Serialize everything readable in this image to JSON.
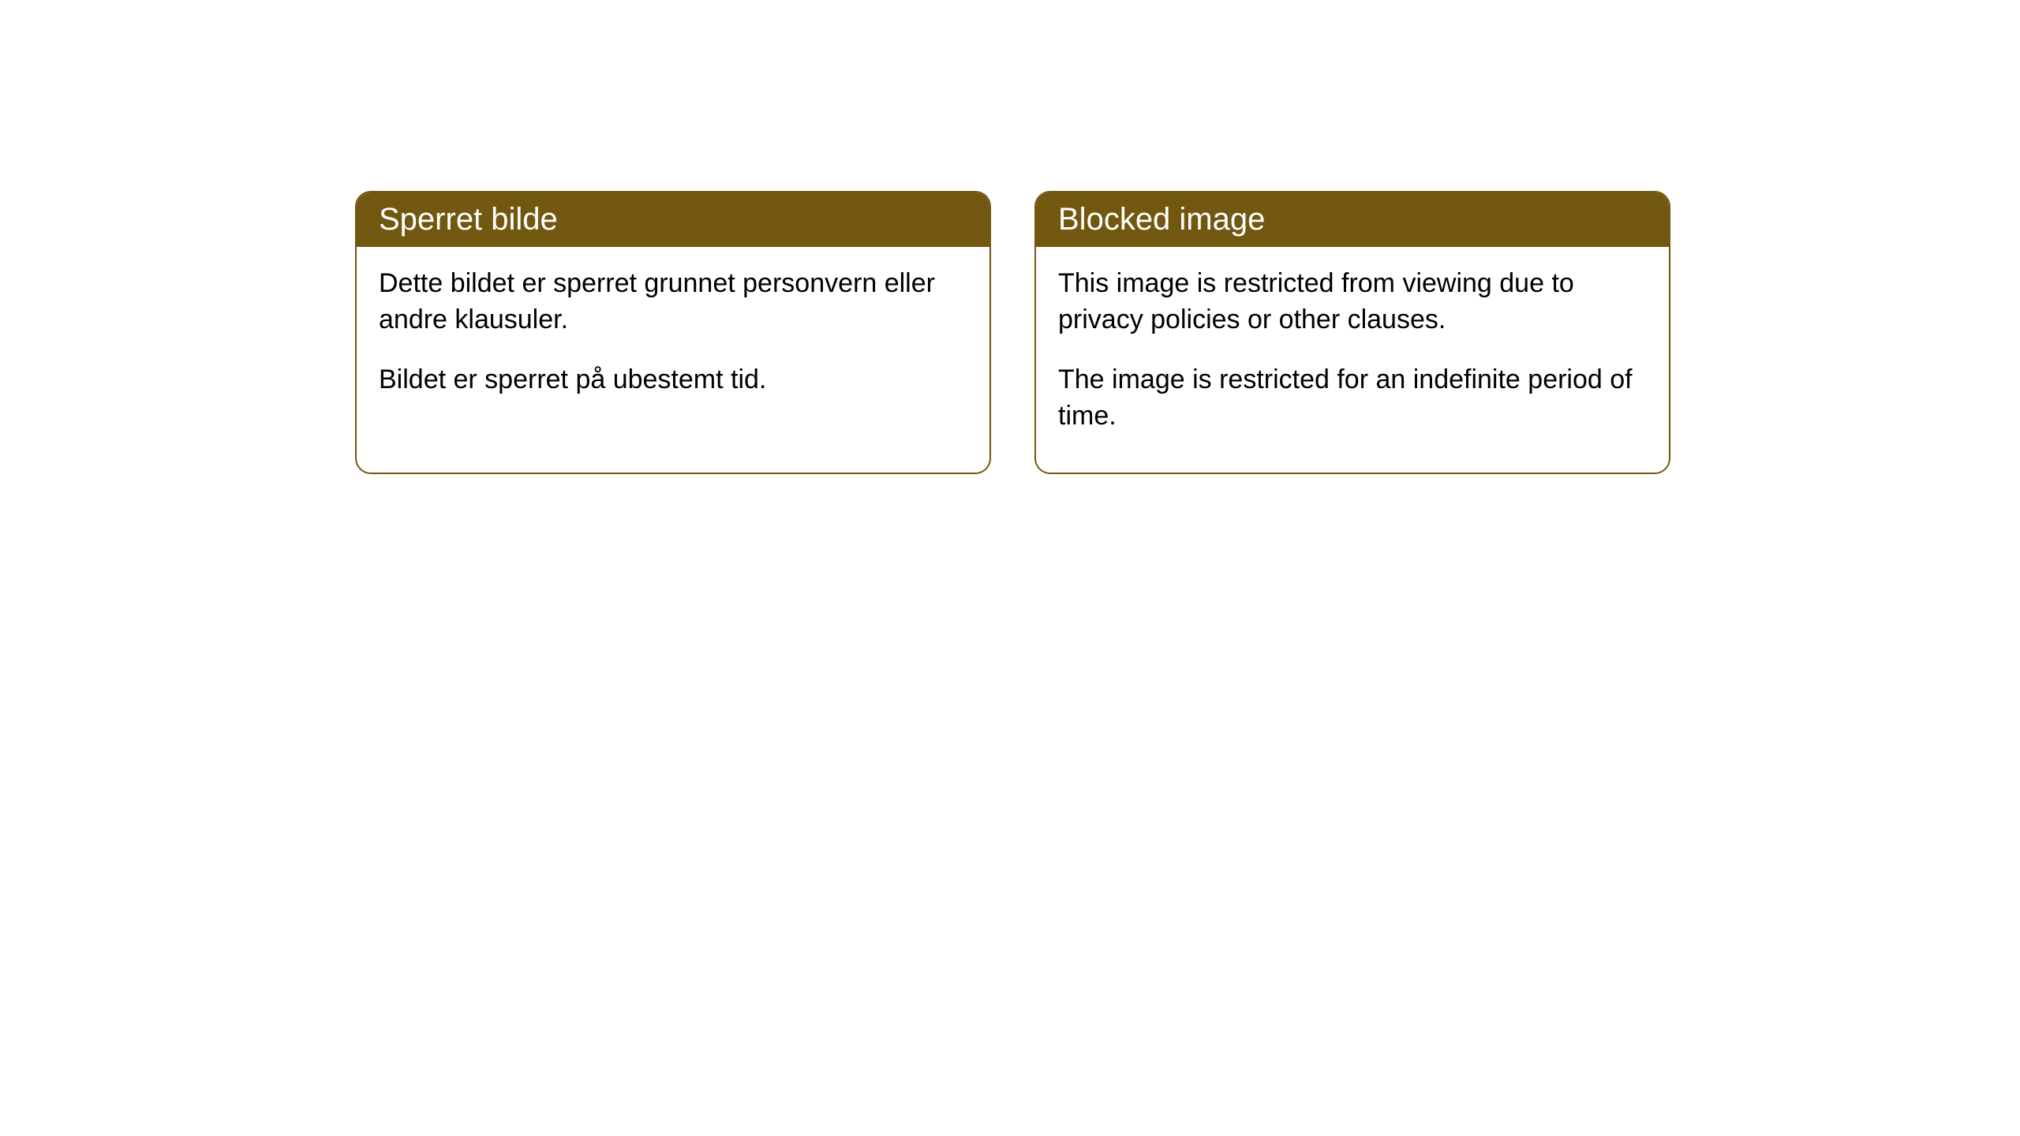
{
  "cards": [
    {
      "title": "Sperret bilde",
      "paragraph1": "Dette bildet er sperret grunnet personvern eller andre klausuler.",
      "paragraph2": "Bildet er sperret på ubestemt tid."
    },
    {
      "title": "Blocked image",
      "paragraph1": "This image is restricted from viewing due to privacy policies or other clauses.",
      "paragraph2": "The image is restricted for an indefinite period of time."
    }
  ],
  "style": {
    "header_bg": "#725710",
    "header_text": "#ffffff",
    "border_color": "#725710",
    "body_bg": "#ffffff",
    "body_text": "#000000",
    "border_radius": 20,
    "title_fontsize": 40,
    "body_fontsize": 34
  }
}
